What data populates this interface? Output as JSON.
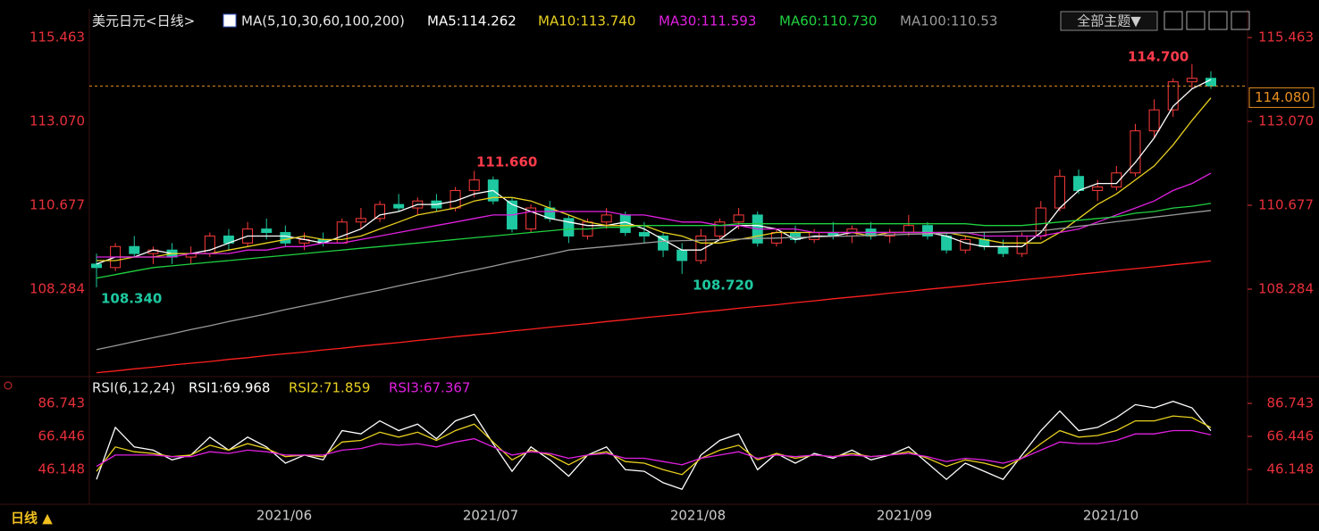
{
  "header": {
    "symbol": "美元日元<日线>",
    "ma_title": "MA(5,10,30,60,100,200)",
    "theme_button": "全部主题▼"
  },
  "chart_data": [
    {
      "type": "candlestick",
      "up_color": "#ff3b3b",
      "down_color": "#1ec8a0",
      "ylim": [
        105.84,
        115.77
      ],
      "yticks": [
        115.463,
        {
          "value": 113.07,
          "label": "113.070"
        },
        110.677,
        108.284
      ],
      "x_labels": [
        "2021/06",
        "2021/07",
        "2021/08",
        "2021/09",
        "2021/10"
      ],
      "high_low_labels": [
        "111.660",
        "108.340",
        "108.720",
        "114.700"
      ],
      "last_price_label": "114.080",
      "candles": [
        [
          109.0,
          109.3,
          108.34,
          108.9
        ],
        [
          108.9,
          109.6,
          108.8,
          109.5
        ],
        [
          109.5,
          109.8,
          109.2,
          109.3
        ],
        [
          109.3,
          109.5,
          109.0,
          109.4
        ],
        [
          109.4,
          109.6,
          109.0,
          109.2
        ],
        [
          109.2,
          109.5,
          109.0,
          109.3
        ],
        [
          109.3,
          109.9,
          109.2,
          109.8
        ],
        [
          109.8,
          110.0,
          109.4,
          109.6
        ],
        [
          109.6,
          110.2,
          109.5,
          110.0
        ],
        [
          110.0,
          110.3,
          109.7,
          109.9
        ],
        [
          109.9,
          110.1,
          109.5,
          109.6
        ],
        [
          109.6,
          109.9,
          109.4,
          109.7
        ],
        [
          109.7,
          109.9,
          109.5,
          109.6
        ],
        [
          109.6,
          110.3,
          109.6,
          110.2
        ],
        [
          110.2,
          110.6,
          110.0,
          110.3
        ],
        [
          110.3,
          110.8,
          110.2,
          110.7
        ],
        [
          110.7,
          111.0,
          110.5,
          110.6
        ],
        [
          110.6,
          110.9,
          110.4,
          110.8
        ],
        [
          110.8,
          111.0,
          110.5,
          110.6
        ],
        [
          110.6,
          111.2,
          110.5,
          111.1
        ],
        [
          111.1,
          111.66,
          110.9,
          111.4
        ],
        [
          111.4,
          111.5,
          110.7,
          110.8
        ],
        [
          110.8,
          110.9,
          109.9,
          110.0
        ],
        [
          110.0,
          110.7,
          109.9,
          110.6
        ],
        [
          110.6,
          110.8,
          110.2,
          110.3
        ],
        [
          110.3,
          110.4,
          109.6,
          109.8
        ],
        [
          109.8,
          110.3,
          109.7,
          110.2
        ],
        [
          110.2,
          110.6,
          110.0,
          110.4
        ],
        [
          110.4,
          110.5,
          109.8,
          109.9
        ],
        [
          109.9,
          110.2,
          109.6,
          109.8
        ],
        [
          109.8,
          109.9,
          109.2,
          109.4
        ],
        [
          109.4,
          109.6,
          108.72,
          109.1
        ],
        [
          109.1,
          110.0,
          109.0,
          109.8
        ],
        [
          109.8,
          110.3,
          109.7,
          110.2
        ],
        [
          110.2,
          110.6,
          110.0,
          110.4
        ],
        [
          110.4,
          110.5,
          109.5,
          109.6
        ],
        [
          109.6,
          110.0,
          109.5,
          109.9
        ],
        [
          109.9,
          110.1,
          109.6,
          109.7
        ],
        [
          109.7,
          110.0,
          109.6,
          109.9
        ],
        [
          109.9,
          110.2,
          109.7,
          109.8
        ],
        [
          109.8,
          110.1,
          109.6,
          110.0
        ],
        [
          110.0,
          110.2,
          109.7,
          109.8
        ],
        [
          109.8,
          110.0,
          109.6,
          109.9
        ],
        [
          109.9,
          110.4,
          109.8,
          110.1
        ],
        [
          110.1,
          110.2,
          109.7,
          109.8
        ],
        [
          109.8,
          109.9,
          109.3,
          109.4
        ],
        [
          109.4,
          109.8,
          109.3,
          109.7
        ],
        [
          109.7,
          109.9,
          109.4,
          109.5
        ],
        [
          109.5,
          109.7,
          109.2,
          109.3
        ],
        [
          109.3,
          109.9,
          109.2,
          109.8
        ],
        [
          109.8,
          110.8,
          109.7,
          110.6
        ],
        [
          110.6,
          111.7,
          110.5,
          111.5
        ],
        [
          111.5,
          111.7,
          111.0,
          111.1
        ],
        [
          111.1,
          111.4,
          110.8,
          111.2
        ],
        [
          111.2,
          111.8,
          111.1,
          111.6
        ],
        [
          111.6,
          113.0,
          111.5,
          112.8
        ],
        [
          112.8,
          113.7,
          112.6,
          113.4
        ],
        [
          113.4,
          114.3,
          113.2,
          114.2
        ],
        [
          114.2,
          114.7,
          114.0,
          114.3
        ],
        [
          114.3,
          114.5,
          114.0,
          114.08
        ]
      ],
      "lines": [
        {
          "name": "MA5:114.262",
          "color": "#ffffff",
          "values": [
            109.0,
            109.2,
            109.2,
            109.4,
            109.3,
            109.3,
            109.4,
            109.6,
            109.8,
            109.8,
            109.8,
            109.7,
            109.6,
            109.8,
            110.0,
            110.4,
            110.5,
            110.7,
            110.7,
            110.8,
            111.0,
            111.1,
            110.7,
            110.5,
            110.3,
            110.2,
            110.1,
            110.1,
            110.2,
            110.0,
            109.7,
            109.4,
            109.4,
            109.7,
            110.1,
            110.1,
            110.0,
            109.7,
            109.8,
            109.8,
            109.9,
            109.9,
            109.9,
            109.9,
            109.9,
            109.8,
            109.6,
            109.5,
            109.5,
            109.5,
            109.9,
            110.6,
            111.1,
            111.3,
            111.3,
            111.9,
            112.6,
            113.5,
            114.0,
            114.262
          ]
        },
        {
          "name": "MA10:113.740",
          "color": "#e8d020",
          "values": [
            109.1,
            109.1,
            109.2,
            109.2,
            109.3,
            109.3,
            109.3,
            109.4,
            109.5,
            109.6,
            109.7,
            109.8,
            109.7,
            109.7,
            109.8,
            110.0,
            110.2,
            110.4,
            110.5,
            110.6,
            110.8,
            110.9,
            110.9,
            110.8,
            110.6,
            110.4,
            110.2,
            110.1,
            110.1,
            110.1,
            109.9,
            109.8,
            109.6,
            109.6,
            109.7,
            109.8,
            109.9,
            109.9,
            109.9,
            109.9,
            109.9,
            109.8,
            109.9,
            109.9,
            109.9,
            109.9,
            109.8,
            109.7,
            109.6,
            109.6,
            109.6,
            109.9,
            110.3,
            110.7,
            111.0,
            111.4,
            111.8,
            112.4,
            113.1,
            113.74
          ]
        },
        {
          "name": "MA30:111.593",
          "color": "#e020e0",
          "values": [
            109.2,
            109.2,
            109.2,
            109.2,
            109.2,
            109.3,
            109.3,
            109.3,
            109.4,
            109.4,
            109.5,
            109.5,
            109.6,
            109.6,
            109.7,
            109.8,
            109.9,
            110.0,
            110.1,
            110.2,
            110.3,
            110.4,
            110.4,
            110.5,
            110.5,
            110.5,
            110.5,
            110.5,
            110.4,
            110.4,
            110.3,
            110.2,
            110.2,
            110.1,
            110.1,
            110.0,
            110.0,
            110.0,
            109.9,
            109.9,
            109.9,
            109.9,
            109.9,
            109.9,
            109.9,
            109.9,
            109.9,
            109.8,
            109.8,
            109.8,
            109.8,
            109.9,
            110.0,
            110.2,
            110.4,
            110.6,
            110.8,
            111.1,
            111.3,
            111.593
          ]
        },
        {
          "name": "MA60:110.730",
          "color": "#20d040",
          "values": [
            108.6,
            108.7,
            108.8,
            108.9,
            108.95,
            109.0,
            109.05,
            109.1,
            109.15,
            109.2,
            109.25,
            109.3,
            109.35,
            109.4,
            109.45,
            109.5,
            109.55,
            109.6,
            109.65,
            109.7,
            109.75,
            109.8,
            109.85,
            109.9,
            109.95,
            110.0,
            110.0,
            110.05,
            110.05,
            110.1,
            110.1,
            110.1,
            110.1,
            110.1,
            110.15,
            110.15,
            110.15,
            110.15,
            110.15,
            110.15,
            110.15,
            110.15,
            110.15,
            110.15,
            110.15,
            110.15,
            110.15,
            110.1,
            110.1,
            110.1,
            110.15,
            110.2,
            110.25,
            110.3,
            110.35,
            110.45,
            110.5,
            110.6,
            110.65,
            110.73
          ]
        },
        {
          "name": "MA100:110.53",
          "color": "#9a9a9a",
          "values": [
            106.56,
            106.67,
            106.79,
            106.9,
            107.01,
            107.13,
            107.24,
            107.36,
            107.47,
            107.58,
            107.7,
            107.81,
            107.92,
            108.04,
            108.15,
            108.26,
            108.38,
            108.49,
            108.6,
            108.72,
            108.83,
            108.94,
            109.06,
            109.17,
            109.28,
            109.4,
            109.45,
            109.5,
            109.55,
            109.6,
            109.65,
            109.67,
            109.68,
            109.7,
            109.71,
            109.73,
            109.74,
            109.76,
            109.77,
            109.79,
            109.8,
            109.82,
            109.83,
            109.85,
            109.86,
            109.88,
            109.89,
            109.91,
            109.92,
            109.94,
            109.95,
            110.01,
            110.08,
            110.14,
            110.21,
            110.27,
            110.34,
            110.4,
            110.47,
            110.53
          ]
        },
        {
          "color": "#ff2020",
          "values": [
            105.9,
            105.95,
            106.01,
            106.06,
            106.12,
            106.17,
            106.22,
            106.28,
            106.33,
            106.39,
            106.44,
            106.49,
            106.55,
            106.6,
            106.66,
            106.71,
            106.76,
            106.82,
            106.87,
            106.93,
            106.98,
            107.03,
            107.09,
            107.14,
            107.2,
            107.25,
            107.3,
            107.36,
            107.41,
            107.47,
            107.52,
            107.57,
            107.63,
            107.68,
            107.74,
            107.79,
            107.84,
            107.9,
            107.95,
            108.01,
            108.06,
            108.11,
            108.17,
            108.22,
            108.28,
            108.33,
            108.38,
            108.44,
            108.49,
            108.55,
            108.6,
            108.65,
            108.71,
            108.76,
            108.82,
            108.87,
            108.92,
            108.98,
            109.03,
            109.09
          ]
        }
      ]
    },
    {
      "type": "line",
      "title": "RSI(6,12,24)",
      "ylim": [
        24.77,
        90.58
      ],
      "yticks": [
        86.743,
        66.446,
        46.148
      ],
      "series": [
        {
          "name": "RSI1:69.968",
          "color": "#ffffff",
          "values": [
            40,
            72,
            60,
            58,
            52,
            55,
            66,
            58,
            66,
            60,
            50,
            55,
            52,
            70,
            68,
            76,
            70,
            74,
            65,
            76,
            80,
            62,
            45,
            60,
            52,
            42,
            55,
            60,
            46,
            45,
            38,
            34,
            55,
            64,
            68,
            46,
            56,
            50,
            56,
            53,
            58,
            52,
            55,
            60,
            50,
            40,
            50,
            45,
            40,
            55,
            70,
            82,
            70,
            72,
            78,
            86,
            84,
            88,
            84,
            69.968
          ]
        },
        {
          "name": "RSI2:71.859",
          "color": "#e8d020",
          "values": [
            45,
            60,
            57,
            56,
            54,
            55,
            61,
            58,
            62,
            59,
            54,
            55,
            54,
            63,
            64,
            69,
            66,
            69,
            64,
            70,
            74,
            63,
            52,
            58,
            55,
            49,
            55,
            57,
            51,
            50,
            46,
            43,
            53,
            58,
            61,
            52,
            56,
            53,
            55,
            54,
            56,
            54,
            55,
            57,
            53,
            48,
            52,
            50,
            47,
            53,
            62,
            70,
            66,
            67,
            70,
            76,
            76,
            79,
            78,
            71.859
          ]
        },
        {
          "name": "RSI3:67.367",
          "color": "#e020e0",
          "values": [
            48,
            55,
            55,
            55,
            54,
            54,
            57,
            56,
            58,
            57,
            55,
            55,
            55,
            58,
            59,
            62,
            61,
            62,
            60,
            63,
            65,
            60,
            55,
            57,
            56,
            53,
            55,
            56,
            53,
            53,
            51,
            49,
            53,
            55,
            57,
            53,
            55,
            54,
            55,
            54,
            55,
            54,
            55,
            56,
            54,
            51,
            53,
            52,
            50,
            53,
            58,
            63,
            62,
            62,
            64,
            68,
            68,
            70,
            70,
            67.367
          ]
        }
      ]
    }
  ],
  "footer": {
    "period": "日线 ▲"
  }
}
